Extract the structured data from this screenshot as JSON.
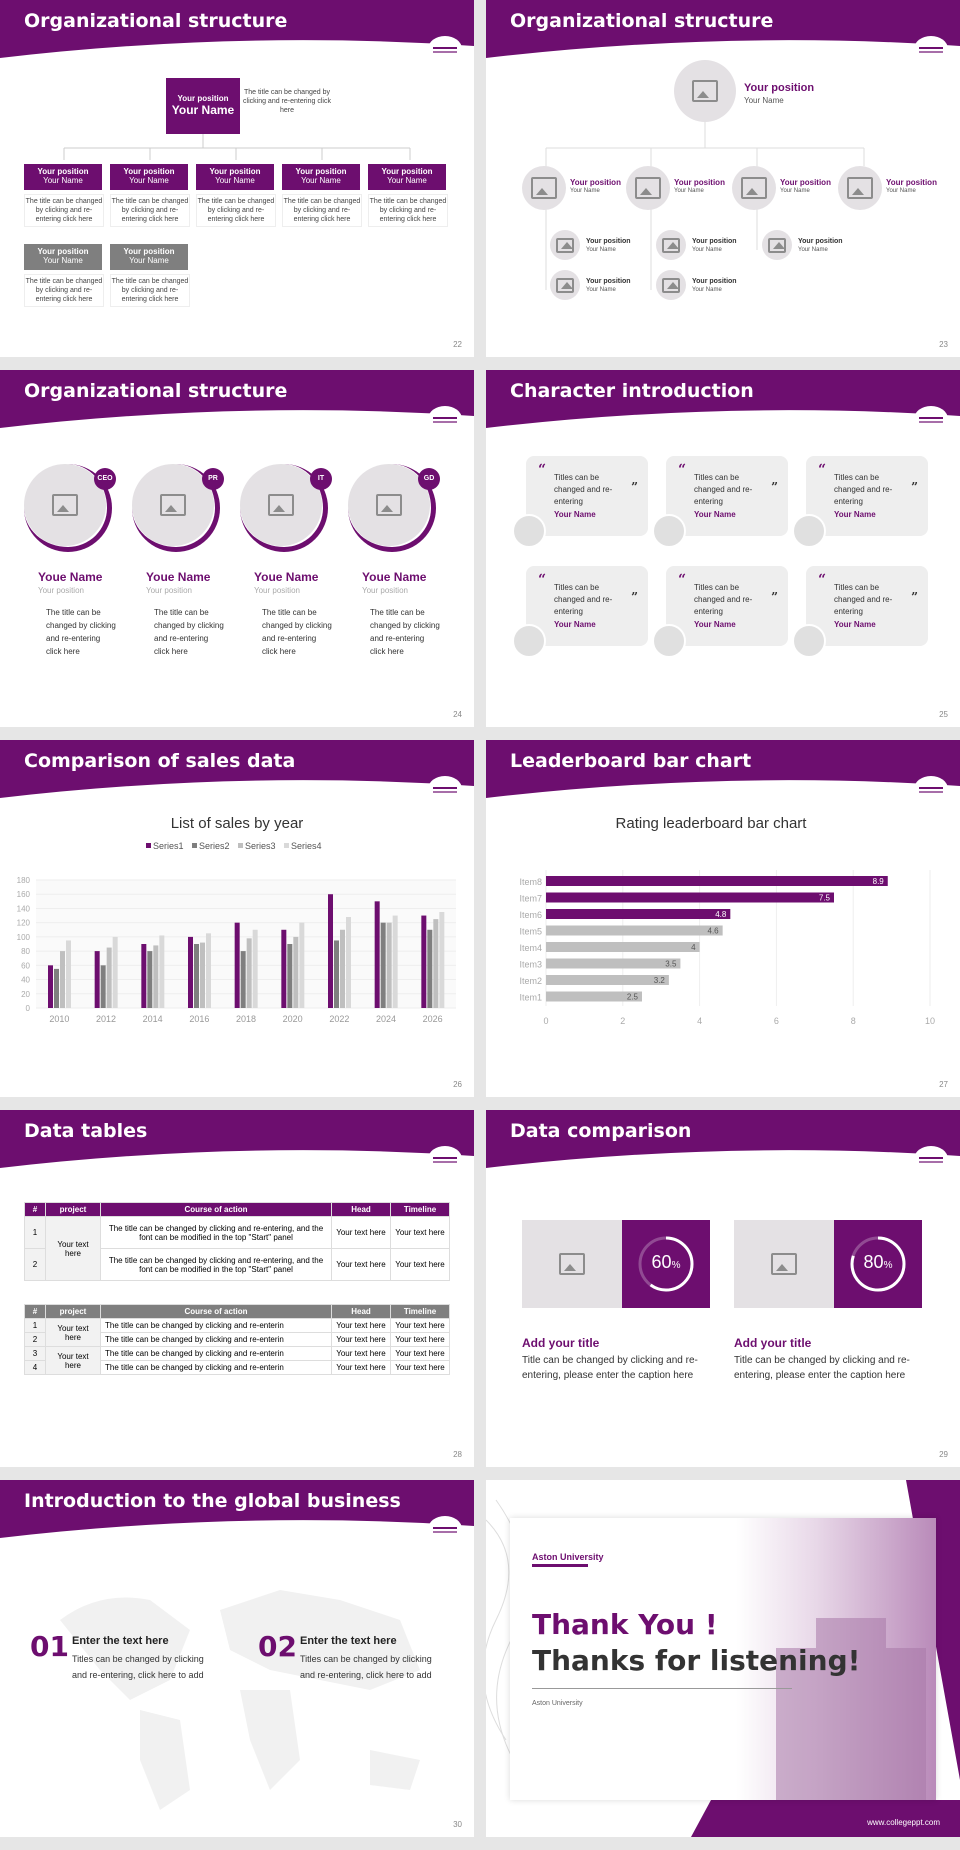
{
  "colors": {
    "brand": "#6d0e6f",
    "gray_bar": "#bfbfbf",
    "dark_gray": "#7f7f7f"
  },
  "slides": {
    "s22": {
      "title": "Organizational structure",
      "page": "22",
      "top": {
        "position": "Your position",
        "name": "Your Name",
        "text": "The title can be changed by clicking and re-entering click here"
      },
      "box_position": "Your position",
      "box_name": "Your Name",
      "box_text": "The title can be changed by clicking and re-entering click here"
    },
    "s23": {
      "title": "Organizational structure",
      "page": "23",
      "top_position": "Your position",
      "top_name": "Your Name",
      "position": "Your position",
      "name": "Your Name"
    },
    "s24": {
      "title": "Organizational structure",
      "page": "24",
      "cards": [
        {
          "badge": "CEO",
          "name": "Youe Name",
          "position": "Your position",
          "text": "The title can be changed by clicking and re-entering click here"
        },
        {
          "badge": "PR",
          "name": "Youe Name",
          "position": "Your position",
          "text": "The title can be changed by clicking and re-entering click here"
        },
        {
          "badge": "IT",
          "name": "Youe Name",
          "position": "Your position",
          "text": "The title can be changed by clicking and re-entering click here"
        },
        {
          "badge": "GD",
          "name": "Youe Name",
          "position": "Your position",
          "text": "The title can be changed by clicking and re-entering click here"
        }
      ]
    },
    "s25": {
      "title": "Character introduction",
      "page": "25",
      "quote_text": "Titles can be changed and re-entering",
      "quote_name": "Your Name"
    },
    "s26": {
      "title": "Comparison of sales data",
      "page": "26"
    },
    "s27": {
      "title": "Leaderboard bar chart",
      "page": "27"
    },
    "s28": {
      "title": "Data tables",
      "page": "28",
      "headers": [
        "#",
        "project",
        "Course of action",
        "Head",
        "Timeline"
      ],
      "t1": {
        "group": "Your text here",
        "rows": [
          {
            "n": "1",
            "course": "The title can be changed by clicking and re-entering, and the font can be modified in the top \"Start\" panel",
            "head": "Your text here",
            "time": "Your text here"
          },
          {
            "n": "2",
            "course": "The title can be changed by clicking and re-entering, and the font can be modified in the top \"Start\" panel",
            "head": "Your text here",
            "time": "Your text here"
          }
        ]
      },
      "t2": {
        "group": "Your text here",
        "rows": [
          {
            "n": "1",
            "course": "The title can be changed by clicking and re-enterin",
            "head": "Your text here",
            "time": "Your text here"
          },
          {
            "n": "2",
            "course": "The title can be changed by clicking and re-enterin",
            "head": "Your text here",
            "time": "Your text here"
          },
          {
            "n": "3",
            "course": "The title can be changed by clicking and re-enterin",
            "head": "Your text here",
            "time": "Your text here"
          },
          {
            "n": "4",
            "course": "The title can be changed by clicking and re-enterin",
            "head": "Your text here",
            "time": "Your text here"
          }
        ]
      }
    },
    "s29": {
      "title": "Data comparison",
      "page": "29",
      "items": [
        {
          "pct": "60",
          "unit": "%",
          "value": 0.6,
          "title": "Add your title",
          "text": "Title can be changed by clicking and re-entering, please enter the caption here"
        },
        {
          "pct": "80",
          "unit": "%",
          "value": 0.8,
          "title": "Add your title",
          "text": "Title can be changed by clicking and re-entering, please enter the caption here"
        }
      ]
    },
    "s30": {
      "title": "Introduction to the global business",
      "page": "30",
      "items": [
        {
          "num": "01",
          "head": "Enter the text here",
          "text": "Titles can be changed by clicking and re-entering, click here to add"
        },
        {
          "num": "02",
          "head": "Enter the text here",
          "text": "Titles can be changed by clicking and re-entering, click here to add"
        }
      ]
    },
    "s31": {
      "logo": "Aston University",
      "line1": "Thank You !",
      "line2": "Thanks for listening!",
      "sub": "Aston University",
      "url": "www.collegeppt.com"
    }
  },
  "chart_data": [
    {
      "type": "bar",
      "title": "List of sales by year",
      "categories": [
        "2010",
        "2012",
        "2014",
        "2016",
        "2018",
        "2020",
        "2022",
        "2024",
        "2026"
      ],
      "series": [
        {
          "name": "Series1",
          "values": [
            60,
            80,
            90,
            100,
            120,
            110,
            160,
            150,
            130
          ]
        },
        {
          "name": "Series2",
          "values": [
            55,
            60,
            80,
            90,
            80,
            90,
            95,
            120,
            110
          ]
        },
        {
          "name": "Series3",
          "values": [
            80,
            85,
            88,
            92,
            98,
            100,
            110,
            120,
            125
          ]
        },
        {
          "name": "Series4",
          "values": [
            95,
            100,
            102,
            105,
            110,
            120,
            128,
            130,
            135
          ]
        }
      ],
      "ylim": [
        0,
        180
      ],
      "yticks": [
        0,
        20,
        40,
        60,
        80,
        100,
        120,
        140,
        160,
        180
      ],
      "legend": "top"
    },
    {
      "type": "bar",
      "orientation": "horizontal",
      "title": "Rating leaderboard bar chart",
      "categories": [
        "Item8",
        "Item7",
        "Item6",
        "Item5",
        "Item4",
        "Item3",
        "Item2",
        "Item1"
      ],
      "values": [
        8.9,
        7.5,
        4.8,
        4.6,
        4,
        3.5,
        3.2,
        2.5
      ],
      "xlim": [
        0,
        10
      ],
      "xticks": [
        0,
        2,
        4,
        6,
        8,
        10
      ]
    }
  ]
}
